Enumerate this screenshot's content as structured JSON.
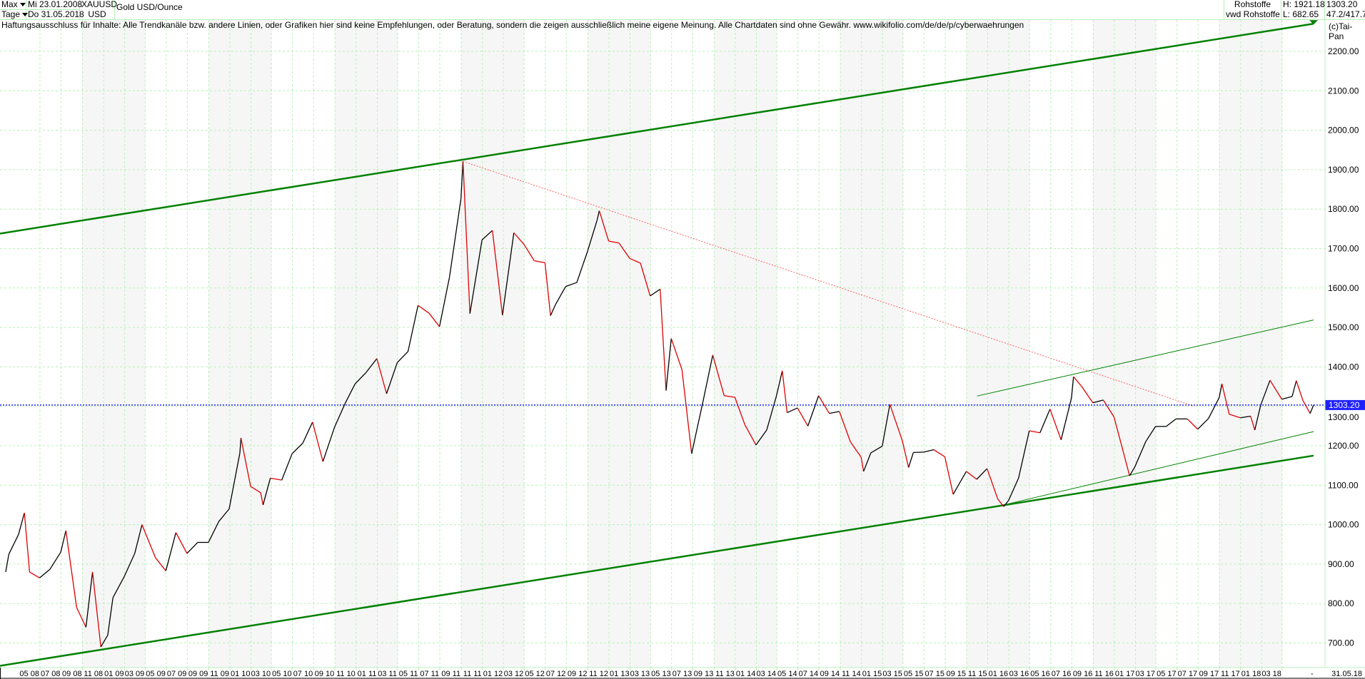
{
  "header": {
    "range_select": "Max",
    "interval_select": "Tage",
    "date_from": "Mi 23.01.2008",
    "date_to": "Do 31.05.2018",
    "symbol": "XAUUSD",
    "currency": "USD",
    "instrument_name": "Gold USD/Ounce",
    "category": "Rohstoffe",
    "source": "vwd Rohstoffe",
    "high": "H: 1921.18",
    "low": "L: 682.65",
    "last": "1303.20",
    "extra": "47.2/417.7"
  },
  "disclaimer": "Haftungsausschluss für Inhalte: Alle Trendkanäle bzw. andere Linien, oder Grafiken hier sind keine Empfehlungen, oder Beratung, sondern die zeigen ausschließlich meine eigene Meinung. Alle Chartdaten sind ohne Gewähr.  www.wikifolio.com/de/de/p/cyberwaehrungen",
  "copyright": "(c)Tai-Pan",
  "colors": {
    "up": "#000000",
    "down": "#e00000",
    "trend": "#008000",
    "resistance": "#ff6060",
    "last_line": "#2020ff",
    "grid": "#b8f0b8",
    "band": "#f6f6f6"
  },
  "chart_data": {
    "type": "line",
    "title": "Gold USD/Ounce",
    "xlabel": "",
    "ylabel": "",
    "xlim": [
      "2008-01-23",
      "2018-05-31"
    ],
    "ylim": [
      640,
      2285
    ],
    "grid": true,
    "axis_position": "right",
    "yticks": [
      700,
      800,
      900,
      1000,
      1100,
      1200,
      1300,
      1400,
      1500,
      1600,
      1700,
      1800,
      1900,
      2000,
      2100,
      2200
    ],
    "ytick_labels": [
      "700.00",
      "800.00",
      "900.00",
      "1000.00",
      "1100.00",
      "1200.00",
      "1300.00",
      "1400.00",
      "1500.00",
      "1600.00",
      "1700.00",
      "1800.00",
      "1900.00",
      "2000.00",
      "2100.00",
      "2200.00"
    ],
    "xtick_labels": [
      "05 08",
      "07 08",
      "09 08",
      "11 08",
      "01 09",
      "03 09",
      "05 09",
      "07 09",
      "09 09",
      "11 09",
      "01 10",
      "03 10",
      "05 10",
      "07 10",
      "09 10",
      "11 10",
      "01 11",
      "03 11",
      "05 11",
      "07 11",
      "09 11",
      "11 11",
      "01 12",
      "03 12",
      "05 12",
      "07 12",
      "09 12",
      "11 12",
      "01 13",
      "03 13",
      "05 13",
      "07 13",
      "09 13",
      "11 13",
      "01 14",
      "03 14",
      "05 14",
      "07 14",
      "09 14",
      "11 14",
      "01 15",
      "03 15",
      "05 15",
      "07 15",
      "09 15",
      "11 15",
      "01 16",
      "03 16",
      "05 16",
      "07 16",
      "09 16",
      "11 16",
      "01 17",
      "03 17",
      "05 17",
      "07 17",
      "09 17",
      "11 17",
      "01 18",
      "03 18"
    ],
    "end_label": "31.05.18",
    "last_value": 1303.2,
    "last_value_label": "1303.20",
    "series": [
      {
        "x": [
          "2008-01-23",
          "2008-02-01",
          "2008-02-29",
          "2008-03-17",
          "2008-04-01",
          "2008-04-30",
          "2008-05-30",
          "2008-06-30",
          "2008-07-15",
          "2008-08-15",
          "2008-09-11",
          "2008-09-30",
          "2008-10-24",
          "2008-11-13",
          "2008-11-28",
          "2008-12-31",
          "2009-01-30",
          "2009-02-20",
          "2009-03-31",
          "2009-04-30",
          "2009-05-29",
          "2009-06-30",
          "2009-07-31",
          "2009-08-31",
          "2009-09-30",
          "2009-10-30",
          "2009-11-30",
          "2009-12-03",
          "2009-12-31",
          "2010-01-29",
          "2010-02-05",
          "2010-02-26",
          "2010-03-31",
          "2010-04-30",
          "2010-05-31",
          "2010-06-28",
          "2010-07-28",
          "2010-08-31",
          "2010-09-30",
          "2010-10-29",
          "2010-11-30",
          "2010-12-31",
          "2011-01-28",
          "2011-02-28",
          "2011-03-31",
          "2011-04-29",
          "2011-05-31",
          "2011-06-30",
          "2011-07-29",
          "2011-08-31",
          "2011-09-06",
          "2011-09-26",
          "2011-10-31",
          "2011-11-30",
          "2011-12-29",
          "2012-01-31",
          "2012-02-29",
          "2012-03-30",
          "2012-04-30",
          "2012-05-16",
          "2012-05-31",
          "2012-06-29",
          "2012-07-31",
          "2012-08-31",
          "2012-09-28",
          "2012-10-04",
          "2012-10-31",
          "2012-11-30",
          "2012-12-31",
          "2013-01-31",
          "2013-02-28",
          "2013-03-29",
          "2013-04-15",
          "2013-04-30",
          "2013-05-31",
          "2013-06-28",
          "2013-07-31",
          "2013-08-28",
          "2013-09-30",
          "2013-10-31",
          "2013-11-29",
          "2013-12-31",
          "2014-01-31",
          "2014-02-28",
          "2014-03-17",
          "2014-03-31",
          "2014-04-30",
          "2014-05-30",
          "2014-06-30",
          "2014-07-31",
          "2014-08-29",
          "2014-09-30",
          "2014-10-31",
          "2014-11-07",
          "2014-11-28",
          "2014-12-31",
          "2015-01-22",
          "2015-02-27",
          "2015-03-17",
          "2015-03-31",
          "2015-04-30",
          "2015-05-29",
          "2015-06-30",
          "2015-07-24",
          "2015-08-31",
          "2015-09-30",
          "2015-10-30",
          "2015-11-30",
          "2015-12-17",
          "2015-12-31",
          "2016-01-29",
          "2016-02-29",
          "2016-03-31",
          "2016-04-29",
          "2016-05-31",
          "2016-06-30",
          "2016-07-06",
          "2016-07-29",
          "2016-08-31",
          "2016-09-30",
          "2016-10-31",
          "2016-11-30",
          "2016-12-15",
          "2016-12-30",
          "2017-01-31",
          "2017-02-28",
          "2017-03-31",
          "2017-04-28",
          "2017-05-31",
          "2017-06-30",
          "2017-07-31",
          "2017-08-31",
          "2017-09-08",
          "2017-09-29",
          "2017-10-31",
          "2017-11-30",
          "2017-12-12",
          "2017-12-29",
          "2018-01-25",
          "2018-02-28",
          "2018-03-30",
          "2018-04-11",
          "2018-04-30",
          "2018-05-21",
          "2018-05-31"
        ],
        "y": [
          880,
          925,
          975,
          1030,
          880,
          865,
          887,
          930,
          985,
          790,
          740,
          880,
          690,
          720,
          815,
          869,
          927,
          1000,
          916,
          883,
          980,
          927,
          955,
          955,
          1008,
          1040,
          1182,
          1220,
          1097,
          1081,
          1050,
          1118,
          1113,
          1180,
          1207,
          1260,
          1160,
          1248,
          1307,
          1357,
          1386,
          1421,
          1332,
          1411,
          1439,
          1556,
          1536,
          1502,
          1628,
          1826,
          1921,
          1535,
          1722,
          1746,
          1531,
          1740,
          1711,
          1669,
          1664,
          1530,
          1559,
          1604,
          1614,
          1693,
          1773,
          1796,
          1719,
          1714,
          1675,
          1663,
          1580,
          1597,
          1340,
          1472,
          1393,
          1180,
          1313,
          1430,
          1327,
          1323,
          1253,
          1202,
          1240,
          1326,
          1390,
          1284,
          1296,
          1250,
          1327,
          1282,
          1287,
          1210,
          1171,
          1135,
          1182,
          1199,
          1305,
          1213,
          1145,
          1183,
          1184,
          1190,
          1172,
          1077,
          1135,
          1115,
          1142,
          1065,
          1046,
          1061,
          1118,
          1238,
          1233,
          1293,
          1215,
          1321,
          1375,
          1351,
          1309,
          1316,
          1273,
          1174,
          1124,
          1146,
          1211,
          1249,
          1249,
          1268,
          1268,
          1242,
          1269,
          1322,
          1357,
          1280,
          1271,
          1275,
          1240,
          1303,
          1366,
          1318,
          1325,
          1365,
          1315,
          1282,
          1303.2
        ]
      }
    ],
    "trendlines": [
      {
        "kind": "upper-channel",
        "style": "thick",
        "from": [
          "2008-01-23",
          1738
        ],
        "to": [
          "2018-05-31",
          2270
        ]
      },
      {
        "kind": "lower-channel",
        "style": "thick",
        "from": [
          "2008-01-23",
          642
        ],
        "to": [
          "2018-05-31",
          1175
        ]
      },
      {
        "kind": "resistance",
        "style": "dotted",
        "from": [
          "2011-09-06",
          1921
        ],
        "to": [
          "2017-06-20",
          1300
        ]
      },
      {
        "kind": "upper-short-channel",
        "style": "thin",
        "from": [
          "2015-10-01",
          1326
        ],
        "to": [
          "2018-05-31",
          1519
        ]
      },
      {
        "kind": "lower-short-channel",
        "style": "thin",
        "from": [
          "2015-12-17",
          1050
        ],
        "to": [
          "2018-05-31",
          1236
        ]
      }
    ]
  }
}
